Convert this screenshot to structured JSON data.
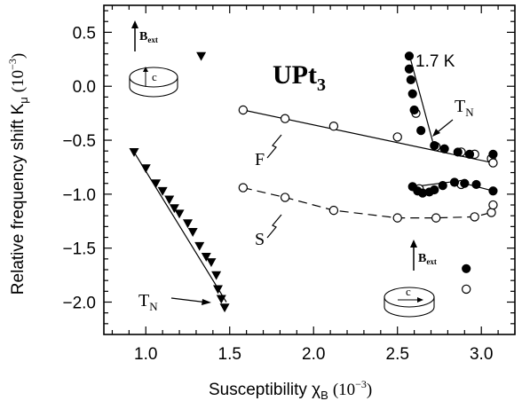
{
  "chart_data": {
    "type": "scatter",
    "title": "UPt",
    "title_sub": "3",
    "xlabel": "Susceptibility χ",
    "xlabel_sub": "B",
    "xlabel_unit": "(10",
    "xlabel_unit_sup": "−3",
    "xlabel_unit_end": ")",
    "ylabel": "Relative frequency shift K",
    "ylabel_sub": "μ",
    "ylabel_unit": "(10",
    "ylabel_unit_sup": "−3",
    "ylabel_unit_end": ")",
    "xlim": [
      0.75,
      3.2
    ],
    "ylim": [
      -2.3,
      0.75
    ],
    "xticks": [
      1.0,
      1.5,
      2.0,
      2.5,
      3.0
    ],
    "xtick_labels": [
      "1.0",
      "1.5",
      "2.0",
      "2.5",
      "3.0"
    ],
    "yticks": [
      0.5,
      0.0,
      -0.5,
      -1.0,
      -1.5,
      -2.0
    ],
    "ytick_labels": [
      "0.5",
      "0.0",
      "−0.5",
      "−1.0",
      "−1.5",
      "−2.0"
    ],
    "grid": false,
    "series": [
      {
        "marker": "filled-down-triangle",
        "color": "#000000",
        "points": [
          [
            0.93,
            -0.61
          ],
          [
            1.0,
            -0.76
          ],
          [
            1.06,
            -0.9
          ],
          [
            1.1,
            -0.97
          ],
          [
            1.14,
            -1.05
          ],
          [
            1.17,
            -1.13
          ],
          [
            1.2,
            -1.18
          ],
          [
            1.25,
            -1.27
          ],
          [
            1.28,
            -1.35
          ],
          [
            1.32,
            -1.48
          ],
          [
            1.36,
            -1.58
          ],
          [
            1.39,
            -1.63
          ],
          [
            1.42,
            -1.75
          ],
          [
            1.43,
            -1.88
          ],
          [
            1.45,
            -1.97
          ],
          [
            1.47,
            -2.05
          ],
          [
            1.33,
            0.28
          ]
        ]
      },
      {
        "marker": "open-circle",
        "color": "#000000",
        "points": [
          [
            1.58,
            -0.22
          ],
          [
            1.83,
            -0.3
          ],
          [
            2.12,
            -0.37
          ],
          [
            2.5,
            -0.47
          ],
          [
            2.61,
            -0.25
          ],
          [
            2.73,
            -0.56
          ],
          [
            2.88,
            -0.61
          ],
          [
            2.96,
            -0.63
          ],
          [
            3.06,
            -0.67
          ],
          [
            3.07,
            -0.71
          ]
        ]
      },
      {
        "marker": "filled-circle",
        "color": "#000000",
        "points": [
          [
            2.57,
            0.28
          ],
          [
            2.57,
            0.16
          ],
          [
            2.58,
            0.06
          ],
          [
            2.59,
            -0.07
          ],
          [
            2.6,
            -0.22
          ],
          [
            2.64,
            -0.41
          ],
          [
            2.72,
            -0.55
          ],
          [
            2.78,
            -0.58
          ],
          [
            2.86,
            -0.61
          ],
          [
            2.93,
            -0.63
          ],
          [
            3.07,
            -0.63
          ]
        ]
      },
      {
        "marker": "open-circle",
        "color": "#000000",
        "points": [
          [
            1.58,
            -0.94
          ],
          [
            1.83,
            -1.03
          ],
          [
            2.12,
            -1.15
          ],
          [
            2.5,
            -1.22
          ],
          [
            2.73,
            -1.22
          ],
          [
            2.96,
            -1.21
          ],
          [
            3.06,
            -1.17
          ],
          [
            3.07,
            -1.1
          ],
          [
            2.63,
            -0.95
          ],
          [
            2.88,
            -0.91
          ],
          [
            2.91,
            -1.88
          ]
        ]
      },
      {
        "marker": "filled-circle",
        "color": "#000000",
        "points": [
          [
            2.59,
            -0.93
          ],
          [
            2.62,
            -0.97
          ],
          [
            2.65,
            -0.99
          ],
          [
            2.69,
            -0.98
          ],
          [
            2.72,
            -0.96
          ],
          [
            2.77,
            -0.92
          ],
          [
            2.84,
            -0.89
          ],
          [
            2.9,
            -0.9
          ],
          [
            2.97,
            -0.91
          ],
          [
            3.07,
            -0.97
          ],
          [
            2.91,
            -1.69
          ]
        ]
      }
    ],
    "fit_lines": [
      {
        "style": "solid",
        "points": [
          [
            0.93,
            -0.61
          ],
          [
            1.48,
            -2.0
          ]
        ]
      },
      {
        "style": "solid",
        "points": [
          [
            1.58,
            -0.22
          ],
          [
            3.07,
            -0.71
          ]
        ]
      },
      {
        "style": "solid",
        "points": [
          [
            2.58,
            0.24
          ],
          [
            2.72,
            -0.57
          ]
        ]
      },
      {
        "style": "dashed",
        "points": [
          [
            1.58,
            -0.94
          ],
          [
            1.83,
            -1.03
          ],
          [
            2.12,
            -1.15
          ],
          [
            2.5,
            -1.22
          ],
          [
            2.73,
            -1.22
          ],
          [
            2.96,
            -1.21
          ],
          [
            3.06,
            -1.17
          ],
          [
            3.07,
            -1.1
          ]
        ]
      },
      {
        "style": "solid",
        "points": [
          [
            3.07,
            -0.97
          ],
          [
            2.85,
            -0.88
          ],
          [
            2.6,
            -0.93
          ]
        ]
      }
    ],
    "annotations": {
      "temperature": "1.7 K",
      "tn_upper": "T",
      "tn_upper_sub": "N",
      "tn_lower": "T",
      "tn_lower_sub": "N",
      "branch_f": "F",
      "branch_s": "S",
      "field_upper": "B",
      "field_upper_sub": "ext",
      "axis_upper": "c",
      "field_lower": "B",
      "field_lower_sub": "ext",
      "axis_lower": "c"
    }
  }
}
